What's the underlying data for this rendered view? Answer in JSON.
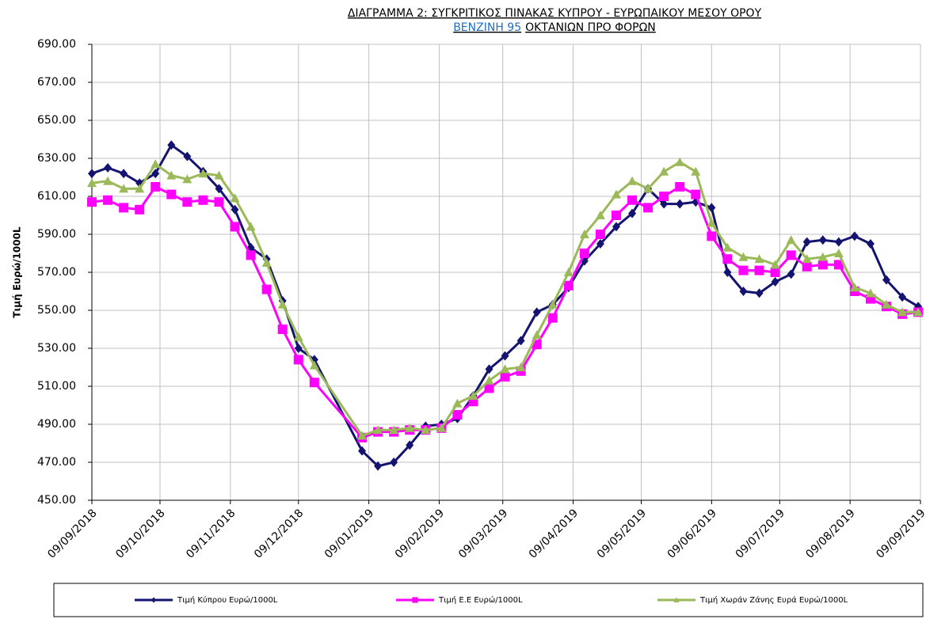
{
  "chart_data": {
    "type": "line",
    "title": "ΔΙΑΓΡΑΜΜΑ 2: ΣΥΓΚΡΙΤΙΚΟΣ ΠΙΝΑΚΑΣ ΚΥΠΡΟΥ - ΕΥΡΩΠΑΙΚΟΥ ΜΕΣΟΥ ΟΡΟΥ",
    "subtitle": [
      "ΒΕΝΖΙΝΗ 95",
      "ΟΚΤΑΝΙΩΝ ΠΡΟ ΦΟΡΩΝ"
    ],
    "ylabel": "Τιμή Ευρώ/1000L",
    "x": [
      "09/09/2018",
      "16/09/2018",
      "23/09/2018",
      "30/09/2018",
      "07/10/2018",
      "14/10/2018",
      "21/10/2018",
      "28/10/2018",
      "04/11/2018",
      "11/11/2018",
      "18/11/2018",
      "25/11/2018",
      "02/12/2018",
      "09/12/2018",
      "16/12/2018",
      "06/01/2019",
      "13/01/2019",
      "20/01/2019",
      "27/01/2019",
      "03/02/2019",
      "10/02/2019",
      "17/02/2019",
      "24/02/2019",
      "03/03/2019",
      "10/03/2019",
      "17/03/2019",
      "24/03/2019",
      "31/03/2019",
      "07/04/2019",
      "14/04/2019",
      "21/04/2019",
      "28/04/2019",
      "05/05/2019",
      "12/05/2019",
      "19/05/2019",
      "26/05/2019",
      "02/06/2019",
      "09/06/2019",
      "16/06/2019",
      "23/06/2019",
      "30/06/2019",
      "07/07/2019",
      "14/07/2019",
      "21/07/2019",
      "28/07/2019",
      "04/08/2019",
      "11/08/2019",
      "18/08/2019",
      "25/08/2019",
      "01/09/2019",
      "08/09/2019"
    ],
    "series": [
      {
        "name": "Τιμή Κύπρου Ευρώ/1000L",
        "color": "#141470",
        "marker": "diamond",
        "values": [
          622,
          625,
          622,
          617,
          622,
          637,
          631,
          623,
          614,
          603,
          583,
          577,
          555,
          530,
          524,
          476,
          468,
          470,
          479,
          489,
          490,
          493,
          505,
          519,
          526,
          534,
          549,
          553,
          562,
          576,
          585,
          594,
          601,
          614,
          606,
          606,
          607,
          604,
          570,
          560,
          559,
          565,
          569,
          586,
          587,
          586,
          589,
          585,
          566,
          557,
          552
        ]
      },
      {
        "name": "Τιμή Ε.Ε Ευρώ/1000L",
        "color": "#ff00ff",
        "marker": "square",
        "values": [
          607,
          608,
          604,
          603,
          615,
          611,
          607,
          608,
          607,
          594,
          579,
          561,
          540,
          524,
          512,
          483,
          486,
          486,
          487,
          487,
          488,
          495,
          502,
          509,
          515,
          518,
          532,
          546,
          563,
          580,
          590,
          600,
          608,
          604,
          610,
          615,
          611,
          589,
          577,
          571,
          571,
          570,
          579,
          573,
          574,
          574,
          560,
          556,
          552,
          548,
          549
        ]
      },
      {
        "name": "Τιμή Χωράν Ζάνης Ευρά Ευρώ/1000L",
        "color": "#9bb959",
        "marker": "triangle",
        "values": [
          617,
          618,
          614,
          614,
          627,
          621,
          619,
          622,
          621,
          609,
          594,
          575,
          553,
          536,
          521,
          484,
          487,
          487,
          488,
          487,
          488,
          501,
          505,
          513,
          519,
          520,
          537,
          553,
          570,
          590,
          600,
          611,
          618,
          614,
          623,
          628,
          623,
          596,
          583,
          578,
          577,
          574,
          587,
          577,
          578,
          580,
          562,
          559,
          553,
          549,
          549
        ]
      }
    ],
    "xlim": [
      "09/09/2018",
      "09/09/2019"
    ],
    "xticks": [
      "09/09/2018",
      "09/10/2018",
      "09/11/2018",
      "09/12/2018",
      "09/01/2019",
      "09/02/2019",
      "09/03/2019",
      "09/04/2019",
      "09/05/2019",
      "09/06/2019",
      "09/07/2019",
      "09/08/2019",
      "09/09/2019"
    ],
    "ylim": [
      450,
      690
    ],
    "yticks": [
      {
        "value": 450,
        "label": "450.00"
      },
      {
        "value": 470,
        "label": "470.00"
      },
      {
        "value": 490,
        "label": "490.00"
      },
      {
        "value": 510,
        "label": "510.00"
      },
      {
        "value": 530,
        "label": "530.00"
      },
      {
        "value": 550,
        "label": "550.00"
      },
      {
        "value": 570,
        "label": "570.00"
      },
      {
        "value": 590,
        "label": "590.00"
      },
      {
        "value": 610,
        "label": "610.00"
      },
      {
        "value": 630,
        "label": "630.00"
      },
      {
        "value": 650,
        "label": "650.00"
      },
      {
        "value": 670,
        "label": "670.00"
      },
      {
        "value": 690,
        "label": "690.00"
      }
    ],
    "grid": true,
    "legend": "bottom"
  }
}
